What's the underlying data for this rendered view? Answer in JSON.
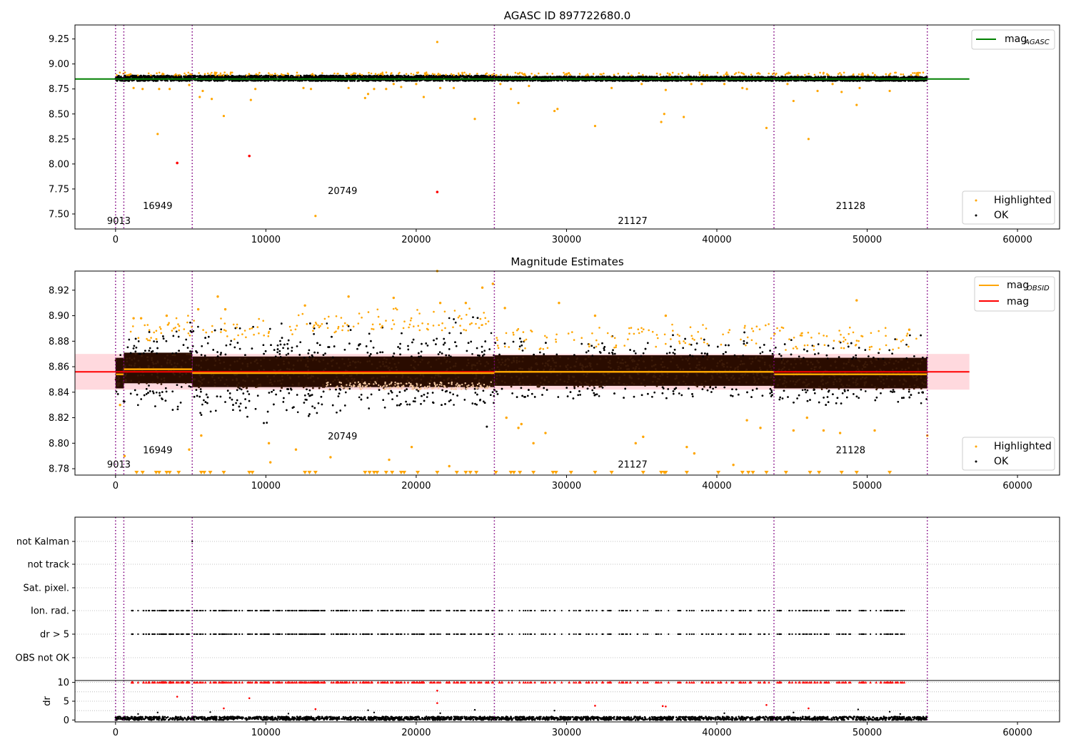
{
  "chart_data": [
    {
      "panel": "top",
      "type": "scatter",
      "title": "AGASC ID 897722680.0",
      "xlim": [
        -2700,
        62800
      ],
      "ylim": [
        7.35,
        9.39
      ],
      "x_ticks": [
        0,
        10000,
        20000,
        30000,
        40000,
        50000,
        60000
      ],
      "x_tick_labels": [
        "0",
        "10000",
        "20000",
        "30000",
        "40000",
        "50000",
        "60000"
      ],
      "y_ticks": [
        7.5,
        7.75,
        8.0,
        8.25,
        8.5,
        8.75,
        9.0,
        9.25
      ],
      "y_tick_labels": [
        "7.50",
        "7.75",
        "8.00",
        "8.25",
        "8.50",
        "8.75",
        "9.00",
        "9.25"
      ],
      "grid": false,
      "legend_position": "top-right",
      "legend_position_2": "bottom-right",
      "legend_lines": [
        {
          "label": "mag",
          "sub": "AGASC",
          "color": "#008000"
        }
      ],
      "legend_markers": [
        {
          "label": "Highlighted",
          "color": "#ffa500"
        },
        {
          "label": "OK",
          "color": "#000000"
        }
      ],
      "hlines": [
        {
          "y": 8.85,
          "x0": -2700,
          "x1": 56800,
          "color": "#008000",
          "name": "mag AGASC"
        }
      ],
      "ok_band": {
        "segments": [
          [
            0,
            25200,
            8.83,
            8.885
          ],
          [
            25200,
            54000,
            8.83,
            8.875
          ]
        ]
      },
      "outliers_orange": [
        [
          1200,
          8.76
        ],
        [
          1800,
          8.75
        ],
        [
          2800,
          8.3
        ],
        [
          2900,
          8.75
        ],
        [
          3600,
          8.75
        ],
        [
          4900,
          8.79
        ],
        [
          5600,
          8.67
        ],
        [
          5800,
          8.73
        ],
        [
          6400,
          8.65
        ],
        [
          7200,
          8.48
        ],
        [
          9000,
          8.64
        ],
        [
          9300,
          8.75
        ],
        [
          12500,
          8.76
        ],
        [
          13000,
          8.75
        ],
        [
          13300,
          7.48
        ],
        [
          15500,
          8.76
        ],
        [
          16600,
          8.66
        ],
        [
          16800,
          8.7
        ],
        [
          17200,
          8.75
        ],
        [
          18000,
          8.75
        ],
        [
          18500,
          8.8
        ],
        [
          19000,
          8.77
        ],
        [
          20000,
          8.8
        ],
        [
          20500,
          8.67
        ],
        [
          21400,
          9.22
        ],
        [
          21600,
          8.76
        ],
        [
          22500,
          8.76
        ],
        [
          23900,
          8.45
        ],
        [
          25600,
          8.8
        ],
        [
          26300,
          8.75
        ],
        [
          26800,
          8.61
        ],
        [
          27500,
          8.78
        ],
        [
          29200,
          8.53
        ],
        [
          29400,
          8.55
        ],
        [
          31900,
          8.38
        ],
        [
          33000,
          8.76
        ],
        [
          35000,
          8.8
        ],
        [
          36300,
          8.42
        ],
        [
          36500,
          8.5
        ],
        [
          36600,
          8.74
        ],
        [
          37800,
          8.47
        ],
        [
          38300,
          8.8
        ],
        [
          39000,
          8.8
        ],
        [
          40500,
          8.8
        ],
        [
          41700,
          8.76
        ],
        [
          42000,
          8.75
        ],
        [
          43300,
          8.36
        ],
        [
          44700,
          8.8
        ],
        [
          45100,
          8.63
        ],
        [
          46100,
          8.25
        ],
        [
          46700,
          8.73
        ],
        [
          47700,
          8.8
        ],
        [
          48300,
          8.72
        ],
        [
          49300,
          8.59
        ],
        [
          49500,
          8.76
        ],
        [
          51500,
          8.73
        ]
      ],
      "outliers_red": [
        [
          4100,
          8.01
        ],
        [
          8900,
          8.08
        ],
        [
          21400,
          7.72
        ]
      ],
      "obsid_boundaries": [
        0,
        550,
        5100,
        25200,
        43800,
        54000
      ],
      "obsid_labels": [
        {
          "text": "9013",
          "x": 220,
          "y": 7.4
        },
        {
          "text": "16949",
          "x": 2800,
          "y": 7.55
        },
        {
          "text": "20749",
          "x": 15100,
          "y": 7.7
        },
        {
          "text": "21127",
          "x": 34400,
          "y": 7.4
        },
        {
          "text": "21128",
          "x": 48900,
          "y": 7.55
        }
      ]
    },
    {
      "panel": "middle",
      "type": "scatter",
      "title": "Magnitude Estimates",
      "xlim": [
        -2700,
        62800
      ],
      "ylim": [
        8.775,
        8.935
      ],
      "x_ticks": [
        0,
        10000,
        20000,
        30000,
        40000,
        50000,
        60000
      ],
      "x_tick_labels": [
        "0",
        "10000",
        "20000",
        "30000",
        "40000",
        "50000",
        "60000"
      ],
      "y_ticks": [
        8.78,
        8.8,
        8.82,
        8.84,
        8.86,
        8.88,
        8.9,
        8.92
      ],
      "y_tick_labels": [
        "8.78",
        "8.80",
        "8.82",
        "8.84",
        "8.86",
        "8.88",
        "8.90",
        "8.92"
      ],
      "grid": false,
      "legend_position": "top-right",
      "legend_position_2": "bottom-right",
      "legend_lines": [
        {
          "label": "mag",
          "sub": "OBSID",
          "color": "#ffa500"
        },
        {
          "label": "mag",
          "sub": "",
          "color": "#ff0000"
        }
      ],
      "legend_markers": [
        {
          "label": "Highlighted",
          "color": "#ffa500"
        },
        {
          "label": "OK",
          "color": "#000000"
        }
      ],
      "hlines": [
        {
          "y": 8.856,
          "x0": -2700,
          "x1": 56800,
          "color": "#ff0000",
          "name": "mag"
        }
      ],
      "mag_band": {
        "y0": 8.842,
        "y1": 8.87,
        "color": "#ffc0c8"
      },
      "obsid_mag_steps": [
        [
          0,
          550,
          8.854
        ],
        [
          550,
          5100,
          8.858
        ],
        [
          5100,
          25200,
          8.855
        ],
        [
          25200,
          43800,
          8.856
        ],
        [
          43800,
          54000,
          8.854
        ]
      ],
      "scatter_envelope": [
        [
          0,
          8.832,
          8.876
        ],
        [
          550,
          8.832,
          8.888
        ],
        [
          5100,
          8.822,
          8.895
        ],
        [
          9000,
          8.812,
          8.892
        ],
        [
          12000,
          8.82,
          8.895
        ],
        [
          16000,
          8.825,
          8.9
        ],
        [
          20000,
          8.83,
          8.9
        ],
        [
          25200,
          8.83,
          8.9
        ],
        [
          25300,
          8.835,
          8.885
        ],
        [
          35000,
          8.835,
          8.887
        ],
        [
          43800,
          8.835,
          8.888
        ],
        [
          43900,
          8.83,
          8.885
        ],
        [
          54000,
          8.83,
          8.885
        ]
      ],
      "outliers_orange": [
        [
          300,
          8.83
        ],
        [
          600,
          8.79
        ],
        [
          1200,
          8.898
        ],
        [
          1700,
          8.898
        ],
        [
          3400,
          8.9
        ],
        [
          4900,
          8.795
        ],
        [
          5500,
          8.905
        ],
        [
          5700,
          8.806
        ],
        [
          6800,
          8.915
        ],
        [
          7300,
          8.905
        ],
        [
          10200,
          8.8
        ],
        [
          10300,
          8.785
        ],
        [
          12000,
          8.795
        ],
        [
          12600,
          8.908
        ],
        [
          14300,
          8.789
        ],
        [
          15500,
          8.915
        ],
        [
          18200,
          8.787
        ],
        [
          18500,
          8.914
        ],
        [
          19700,
          8.797
        ],
        [
          21400,
          8.935
        ],
        [
          21600,
          8.91
        ],
        [
          22200,
          8.782
        ],
        [
          23300,
          8.91
        ],
        [
          24400,
          8.922
        ],
        [
          25100,
          8.925
        ],
        [
          25900,
          8.906
        ],
        [
          26000,
          8.82
        ],
        [
          26800,
          8.812
        ],
        [
          27000,
          8.815
        ],
        [
          27800,
          8.8
        ],
        [
          28600,
          8.808
        ],
        [
          29500,
          8.91
        ],
        [
          31900,
          8.9
        ],
        [
          34600,
          8.8
        ],
        [
          35100,
          8.805
        ],
        [
          36600,
          8.9
        ],
        [
          38000,
          8.797
        ],
        [
          38500,
          8.792
        ],
        [
          41100,
          8.783
        ],
        [
          42000,
          8.818
        ],
        [
          42900,
          8.812
        ],
        [
          45100,
          8.81
        ],
        [
          46000,
          8.82
        ],
        [
          47100,
          8.81
        ],
        [
          48200,
          8.808
        ],
        [
          49300,
          8.912
        ],
        [
          50500,
          8.81
        ],
        [
          52800,
          8.889
        ],
        [
          54000,
          8.806
        ]
      ],
      "lower_bound_markers": [
        1400,
        1800,
        2700,
        2900,
        3400,
        3600,
        4200,
        5700,
        5900,
        6300,
        7200,
        8900,
        9100,
        12600,
        12900,
        13300,
        16600,
        16900,
        17200,
        17400,
        18000,
        18400,
        19000,
        19200,
        20100,
        21400,
        22700,
        23300,
        23600,
        24000,
        25300,
        26300,
        26500,
        26900,
        27800,
        29100,
        29300,
        30300,
        31900,
        33000,
        35100,
        36300,
        36500,
        36600,
        38000,
        40100,
        41700,
        42100,
        42400,
        43300,
        44600,
        46200,
        46800,
        48300,
        49300,
        51500
      ],
      "outliers_black": [
        [
          24700,
          8.813
        ]
      ],
      "obsid_boundaries": [
        0,
        550,
        5100,
        25200,
        43800,
        54000
      ],
      "obsid_labels": [
        {
          "text": "9013",
          "x": 220,
          "y": 8.781
        },
        {
          "text": "16949",
          "x": 2800,
          "y": 8.792
        },
        {
          "text": "20749",
          "x": 15100,
          "y": 8.803
        },
        {
          "text": "21127",
          "x": 34400,
          "y": 8.781
        },
        {
          "text": "21128",
          "x": 48900,
          "y": 8.792
        }
      ]
    },
    {
      "panel": "flags",
      "type": "scatter",
      "xlim": [
        -2700,
        62800
      ],
      "categories": [
        "not Kalman",
        "not track",
        "Sat. pixel.",
        "Ion. rad.",
        "dr > 5",
        "OBS not OK"
      ],
      "grid": true,
      "flag_rows": {
        "Ion. rad.": {
          "x_start": 1000,
          "x_end": 52500
        },
        "dr > 5": {
          "x_start": 1000,
          "x_end": 52500
        }
      },
      "not_kalman_points": [
        5100
      ],
      "obsid_boundaries": [
        0,
        550,
        5100,
        25200,
        43800,
        54000
      ]
    },
    {
      "panel": "dr",
      "type": "scatter",
      "ylabel": "dr",
      "xlim": [
        -2700,
        62800
      ],
      "ylim": [
        -0.5,
        10.5
      ],
      "x_ticks": [
        0,
        10000,
        20000,
        30000,
        40000,
        50000,
        60000
      ],
      "x_tick_labels": [
        "0",
        "10000",
        "20000",
        "30000",
        "40000",
        "50000",
        "60000"
      ],
      "y_ticks": [
        0,
        5,
        10
      ],
      "y_tick_labels": [
        "0",
        "5",
        "10"
      ],
      "grid": true,
      "dr_outliers_red": [
        [
          4100,
          6.2
        ],
        [
          8900,
          5.8
        ],
        [
          21400,
          7.8
        ],
        [
          21400,
          4.5
        ],
        [
          31900,
          3.8
        ],
        [
          36400,
          3.7
        ],
        [
          36600,
          3.6
        ],
        [
          43300,
          4.0
        ],
        [
          46100,
          3.1
        ],
        [
          13300,
          2.9
        ],
        [
          7200,
          3.1
        ]
      ],
      "dr_outliers_black": [
        [
          1500,
          1.6
        ],
        [
          2800,
          2.0
        ],
        [
          6300,
          2.1
        ],
        [
          11500,
          1.7
        ],
        [
          16800,
          2.6
        ],
        [
          17200,
          2.0
        ],
        [
          21600,
          1.8
        ],
        [
          23900,
          2.7
        ],
        [
          29200,
          2.5
        ],
        [
          40500,
          1.8
        ],
        [
          45100,
          2.0
        ],
        [
          49400,
          2.8
        ],
        [
          51500,
          2.2
        ],
        [
          52200,
          1.6
        ]
      ],
      "obsid_boundaries": [
        0,
        550,
        5100,
        25200,
        43800,
        54000
      ]
    }
  ]
}
